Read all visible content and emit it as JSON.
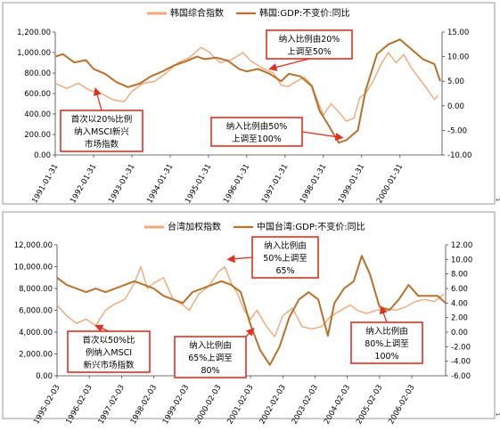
{
  "chart_data": [
    {
      "type": "line",
      "legend": [
        "韩国综合指数",
        "韩国:GDP:不变价:同比"
      ],
      "legend_position": "top",
      "x_tick_labels": [
        "1991-01-31",
        "1992-01-31",
        "1993-01-31",
        "1994-01-31",
        "1995-01-31",
        "1996-01-31",
        "1997-01-31",
        "1998-01-31",
        "1999-01-31",
        "2000-01-31"
      ],
      "xlim": [
        1991.0,
        2001.1
      ],
      "left_axis": {
        "ticks": [
          "0.00",
          "200.00",
          "400.00",
          "600.00",
          "800.00",
          "1,000.00",
          "1,200.00"
        ],
        "ylim": [
          0,
          1200
        ]
      },
      "right_axis": {
        "ticks": [
          "-10.00",
          "-5.00",
          "0.00",
          "5.00",
          "10.00",
          "15.00"
        ],
        "ylim": [
          -10,
          15
        ]
      },
      "series": [
        {
          "name": "韩国综合指数",
          "axis": "left",
          "color": "#f0a878",
          "points": [
            [
              1991.0,
              700
            ],
            [
              1991.3,
              650
            ],
            [
              1991.6,
              700
            ],
            [
              1991.9,
              630
            ],
            [
              1992.2,
              600
            ],
            [
              1992.5,
              540
            ],
            [
              1992.8,
              520
            ],
            [
              1993.0,
              620
            ],
            [
              1993.3,
              700
            ],
            [
              1993.6,
              720
            ],
            [
              1993.9,
              800
            ],
            [
              1994.2,
              900
            ],
            [
              1994.5,
              950
            ],
            [
              1994.8,
              1050
            ],
            [
              1995.0,
              1010
            ],
            [
              1995.3,
              900
            ],
            [
              1995.6,
              930
            ],
            [
              1995.9,
              1000
            ],
            [
              1996.1,
              920
            ],
            [
              1996.4,
              850
            ],
            [
              1996.7,
              800
            ],
            [
              1996.9,
              680
            ],
            [
              1997.1,
              670
            ],
            [
              1997.3,
              720
            ],
            [
              1997.5,
              760
            ],
            [
              1997.7,
              680
            ],
            [
              1997.9,
              480
            ],
            [
              1998.0,
              390
            ],
            [
              1998.2,
              500
            ],
            [
              1998.4,
              420
            ],
            [
              1998.6,
              330
            ],
            [
              1998.8,
              360
            ],
            [
              1998.95,
              560
            ],
            [
              1999.1,
              600
            ],
            [
              1999.3,
              720
            ],
            [
              1999.5,
              880
            ],
            [
              1999.7,
              1000
            ],
            [
              1999.9,
              900
            ],
            [
              2000.1,
              980
            ],
            [
              2000.3,
              850
            ],
            [
              2000.5,
              750
            ],
            [
              2000.7,
              650
            ],
            [
              2000.9,
              540
            ],
            [
              2001.0,
              580
            ]
          ]
        },
        {
          "name": "韩国:GDP:不变价:同比",
          "axis": "right",
          "color": "#b8702a",
          "points": [
            [
              1991.0,
              10.0
            ],
            [
              1991.2,
              10.5
            ],
            [
              1991.5,
              8.8
            ],
            [
              1991.8,
              9.3
            ],
            [
              1992.0,
              7.5
            ],
            [
              1992.3,
              6.5
            ],
            [
              1992.6,
              4.8
            ],
            [
              1992.9,
              3.8
            ],
            [
              1993.2,
              4.5
            ],
            [
              1993.5,
              6.0
            ],
            [
              1993.8,
              7.0
            ],
            [
              1994.1,
              8.2
            ],
            [
              1994.4,
              9.0
            ],
            [
              1994.7,
              10.0
            ],
            [
              1994.9,
              9.5
            ],
            [
              1995.2,
              9.8
            ],
            [
              1995.5,
              9.2
            ],
            [
              1995.8,
              7.5
            ],
            [
              1996.0,
              7.0
            ],
            [
              1996.3,
              7.5
            ],
            [
              1996.6,
              6.5
            ],
            [
              1996.9,
              5.0
            ],
            [
              1997.1,
              6.5
            ],
            [
              1997.4,
              6.0
            ],
            [
              1997.7,
              4.0
            ],
            [
              1997.9,
              -1.0
            ],
            [
              1998.1,
              -3.5
            ],
            [
              1998.4,
              -7.5
            ],
            [
              1998.6,
              -7.0
            ],
            [
              1998.9,
              -5.0
            ],
            [
              1999.1,
              3.0
            ],
            [
              1999.4,
              10.5
            ],
            [
              1999.7,
              12.5
            ],
            [
              2000.0,
              13.5
            ],
            [
              2000.3,
              11.5
            ],
            [
              2000.6,
              9.5
            ],
            [
              2000.9,
              8.5
            ],
            [
              2001.05,
              5.0
            ]
          ]
        }
      ],
      "annotations": [
        {
          "lines": [
            "纳入比例由20%",
            "上调至50%"
          ],
          "target": [
            1996.6,
            7.5
          ]
        },
        {
          "lines": [
            "首次以20%比例",
            "纳入MSCI新兴",
            "市场指数"
          ],
          "target": [
            1992.05,
            650
          ]
        },
        {
          "lines": [
            "纳入比例由50%",
            "上调至100%"
          ],
          "target": [
            1998.5,
            -6.5
          ]
        }
      ]
    },
    {
      "type": "line",
      "legend": [
        "台湾加权指数",
        "中国台湾:GDP:不变价:同比"
      ],
      "legend_position": "top",
      "x_tick_labels": [
        "1995-02-03",
        "1996-02-03",
        "1997-02-03",
        "1998-02-03",
        "1999-02-03",
        "2000-02-03",
        "2001-02-03",
        "2002-02-03",
        "2003-02-03",
        "2004-02-03",
        "2005-02-03",
        "2006-02-03"
      ],
      "xlim": [
        1995.0,
        2007.05
      ],
      "left_axis": {
        "ticks": [
          "0.00",
          "2,000.00",
          "4,000.00",
          "6,000.00",
          "8,000.00",
          "10,000.00",
          "12,000.00"
        ],
        "ylim": [
          0,
          12000
        ]
      },
      "right_axis": {
        "ticks": [
          "-6.00",
          "-4.00",
          "-2.00",
          "0.00",
          "2.00",
          "4.00",
          "6.00",
          "8.00",
          "10.00",
          "12.00"
        ],
        "ylim": [
          -6,
          12
        ]
      },
      "series": [
        {
          "name": "台湾加权指数",
          "axis": "left",
          "color": "#f0a878",
          "points": [
            [
              1995.0,
              6500
            ],
            [
              1995.3,
              5500
            ],
            [
              1995.6,
              4800
            ],
            [
              1995.9,
              5200
            ],
            [
              1996.2,
              4600
            ],
            [
              1996.5,
              6000
            ],
            [
              1996.8,
              6600
            ],
            [
              1997.1,
              7000
            ],
            [
              1997.4,
              8500
            ],
            [
              1997.6,
              10000
            ],
            [
              1997.8,
              8000
            ],
            [
              1998.0,
              8500
            ],
            [
              1998.3,
              9000
            ],
            [
              1998.6,
              7000
            ],
            [
              1998.9,
              6500
            ],
            [
              1999.1,
              6000
            ],
            [
              1999.4,
              7500
            ],
            [
              1999.7,
              8200
            ],
            [
              2000.0,
              9500
            ],
            [
              2000.2,
              10000
            ],
            [
              2000.4,
              8500
            ],
            [
              2000.6,
              7500
            ],
            [
              2000.8,
              6000
            ],
            [
              2001.0,
              5200
            ],
            [
              2001.2,
              6000
            ],
            [
              2001.5,
              4500
            ],
            [
              2001.75,
              3600
            ],
            [
              2002.0,
              5500
            ],
            [
              2002.3,
              6200
            ],
            [
              2002.6,
              4500
            ],
            [
              2002.9,
              4300
            ],
            [
              2003.2,
              4500
            ],
            [
              2003.5,
              5500
            ],
            [
              2003.8,
              6000
            ],
            [
              2004.1,
              6500
            ],
            [
              2004.3,
              6000
            ],
            [
              2004.6,
              5700
            ],
            [
              2004.9,
              6000
            ],
            [
              2005.2,
              6200
            ],
            [
              2005.5,
              6000
            ],
            [
              2005.8,
              6300
            ],
            [
              2006.1,
              6800
            ],
            [
              2006.4,
              7000
            ],
            [
              2006.7,
              6800
            ],
            [
              2007.0,
              7500
            ]
          ]
        },
        {
          "name": "中国台湾:GDP:不变价:同比",
          "axis": "right",
          "color": "#b8702a",
          "points": [
            [
              1995.0,
              7.5
            ],
            [
              1995.3,
              6.5
            ],
            [
              1995.6,
              6.0
            ],
            [
              1995.9,
              5.5
            ],
            [
              1996.2,
              6.0
            ],
            [
              1996.5,
              5.5
            ],
            [
              1996.8,
              6.0
            ],
            [
              1997.1,
              6.5
            ],
            [
              1997.4,
              7.0
            ],
            [
              1997.7,
              6.5
            ],
            [
              1998.0,
              6.0
            ],
            [
              1998.3,
              5.0
            ],
            [
              1998.6,
              4.5
            ],
            [
              1998.9,
              4.0
            ],
            [
              1999.2,
              5.5
            ],
            [
              1999.5,
              6.0
            ],
            [
              1999.8,
              6.5
            ],
            [
              2000.1,
              7.0
            ],
            [
              2000.4,
              6.5
            ],
            [
              2000.7,
              5.5
            ],
            [
              2001.0,
              1.0
            ],
            [
              2001.3,
              -2.5
            ],
            [
              2001.6,
              -4.5
            ],
            [
              2001.9,
              -2.0
            ],
            [
              2002.2,
              2.0
            ],
            [
              2002.5,
              4.5
            ],
            [
              2002.8,
              5.5
            ],
            [
              2003.1,
              4.5
            ],
            [
              2003.4,
              -0.5
            ],
            [
              2003.6,
              4.0
            ],
            [
              2003.9,
              6.0
            ],
            [
              2004.2,
              7.0
            ],
            [
              2004.45,
              10.5
            ],
            [
              2004.7,
              8.0
            ],
            [
              2005.0,
              3.5
            ],
            [
              2005.3,
              3.0
            ],
            [
              2005.6,
              4.5
            ],
            [
              2005.9,
              6.5
            ],
            [
              2006.2,
              5.0
            ],
            [
              2006.5,
              5.0
            ],
            [
              2006.8,
              5.0
            ],
            [
              2007.05,
              4.0
            ]
          ]
        }
      ],
      "annotations": [
        {
          "lines": [
            "纳入比例由",
            "50%上调至",
            "65%"
          ],
          "target": [
            2000.3,
            10.0
          ]
        },
        {
          "lines": [
            "首次以50%比",
            "例纳入MSCI",
            "新兴市场指数"
          ],
          "target": [
            1996.2,
            4600
          ]
        },
        {
          "lines": [
            "纳入比例由",
            "65%上调至",
            "80%"
          ],
          "target": [
            2001.1,
            0.5
          ]
        },
        {
          "lines": [
            "纳入比例由",
            "80%上调至",
            "100%"
          ],
          "target": [
            2005.05,
            3.5
          ]
        }
      ]
    }
  ],
  "colors": {
    "index_line": "#f0a878",
    "gdp_line": "#b8702a",
    "callout_border": "#e03020",
    "arrow": "#e03020"
  },
  "icons": {
    "paragraph_mark": "↵"
  }
}
